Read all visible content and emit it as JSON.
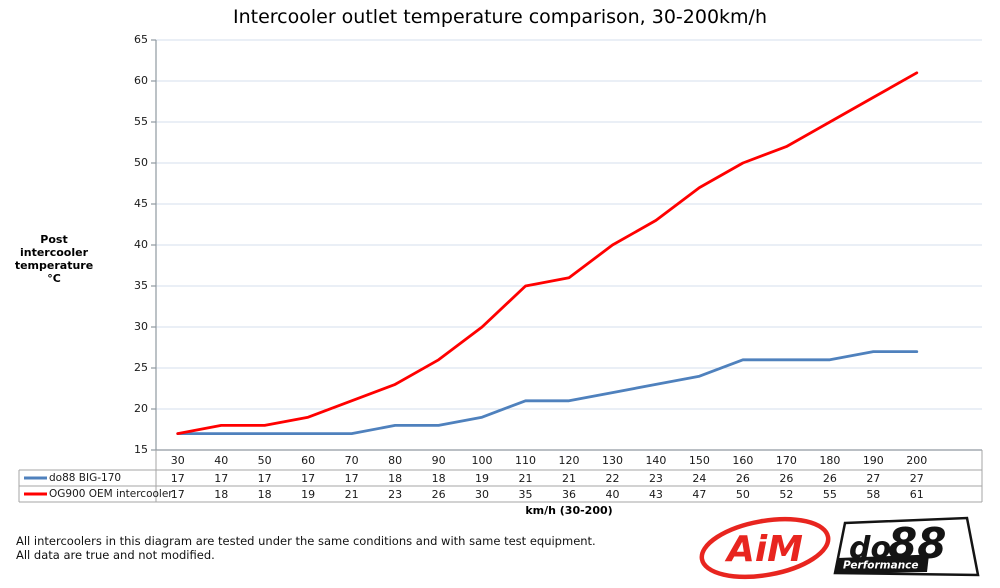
{
  "title": "Intercooler outlet temperature comparison, 30-200km/h",
  "y_axis_title": {
    "line1": "Post intercooler",
    "line2": "temperature °C"
  },
  "x_axis_title": "km/h (30-200)",
  "footnote": {
    "line1": "All intercoolers in this diagram are tested under the same conditions and with same test equipment.",
    "line2": "All data are true and not modified."
  },
  "logos": {
    "aim_text": "AiM",
    "do88_text_do": "do",
    "do88_text_88": "88",
    "do88_sub": "Performance"
  },
  "colors": {
    "series_do88": "#4F81BD",
    "series_oem": "#FF0000",
    "gridline": "#D5DFED",
    "axis": "#9099A1",
    "table_border": "#A6A6A6",
    "aim_red": "#E8251F",
    "do88_black": "#141414"
  },
  "chart_data": {
    "type": "line",
    "title": "Intercooler outlet temperature comparison, 30-200km/h",
    "xlabel": "km/h (30-200)",
    "ylabel": "Post intercooler temperature °C",
    "categories": [
      30,
      40,
      50,
      60,
      70,
      80,
      90,
      100,
      110,
      120,
      130,
      140,
      150,
      160,
      170,
      180,
      190,
      200
    ],
    "series": [
      {
        "name": "do88 BIG-170",
        "color": "#4F81BD",
        "values": [
          17,
          17,
          17,
          17,
          17,
          18,
          18,
          19,
          21,
          21,
          22,
          23,
          24,
          26,
          26,
          26,
          27,
          27
        ]
      },
      {
        "name": "OG900 OEM intercooler",
        "color": "#FF0000",
        "values": [
          17,
          18,
          18,
          19,
          21,
          23,
          26,
          30,
          35,
          36,
          40,
          43,
          47,
          50,
          52,
          55,
          58,
          61
        ]
      }
    ],
    "ylim": [
      15,
      65
    ],
    "yticks": [
      65,
      60,
      55,
      50,
      45,
      40,
      35,
      30,
      25,
      20,
      15
    ],
    "grid": true,
    "legend_position": "data-table-left"
  }
}
